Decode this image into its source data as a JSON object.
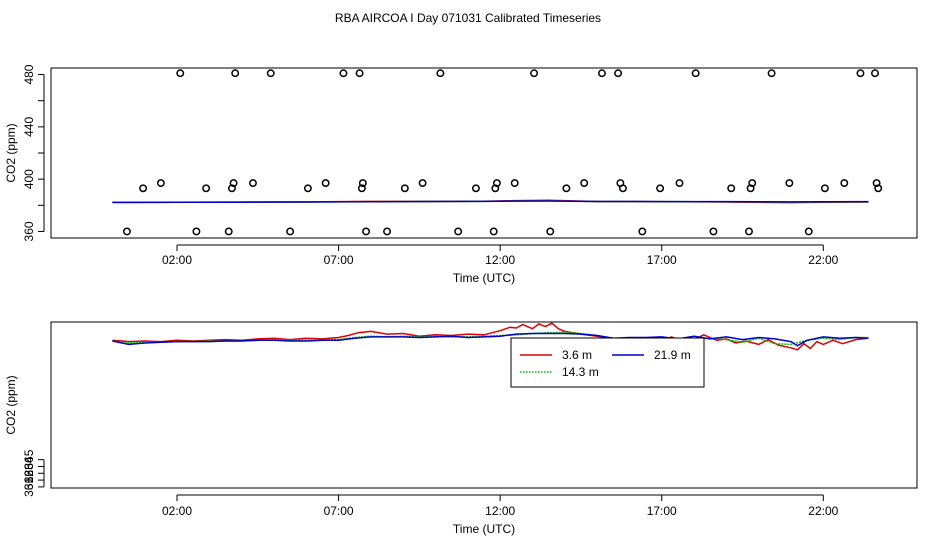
{
  "title": "RBA AIRCOA I  Day 071031  Calibrated Timeseries",
  "colors": {
    "s1": "#e00000",
    "s2": "#00bb00",
    "s3": "#0000cc",
    "markers": "#000000"
  },
  "chart_data": [
    {
      "type": "scatter",
      "xlabel": "Time (UTC)",
      "ylabel": "CO2 (ppm)",
      "xlim": [
        -1.9,
        24.9
      ],
      "ylim": [
        355,
        485
      ],
      "xticks": [
        2,
        7,
        12,
        17,
        22
      ],
      "xtick_labels": [
        "02:00",
        "07:00",
        "12:00",
        "17:00",
        "22:00"
      ],
      "yticks": [
        360,
        380,
        400,
        420,
        440,
        460,
        480
      ],
      "ytick_labels": [
        "360",
        "",
        "400",
        "",
        "440",
        "",
        "480"
      ],
      "marker_points": {
        "x": [
          0.45,
          0.95,
          1.5,
          2.1,
          2.6,
          2.9,
          3.6,
          3.7,
          3.75,
          3.8,
          4.35,
          4.9,
          5.5,
          6.05,
          6.6,
          7.15,
          7.65,
          7.72,
          7.75,
          7.85,
          8.5,
          9.05,
          9.6,
          10.15,
          10.7,
          11.25,
          11.8,
          11.85,
          11.9,
          12.45,
          13.05,
          13.55,
          14.05,
          14.6,
          15.15,
          15.65,
          15.72,
          15.8,
          16.4,
          16.95,
          17.55,
          18.05,
          18.6,
          19.15,
          19.7,
          19.75,
          19.8,
          20.4,
          20.95,
          21.55,
          22.05,
          22.65,
          23.15,
          23.6,
          23.65,
          23.7
        ],
        "y": [
          360,
          393,
          397,
          481,
          360,
          393,
          360,
          393,
          397,
          481,
          397,
          481,
          360,
          393,
          397,
          481,
          481,
          393,
          397,
          360,
          360,
          393,
          397,
          481,
          360,
          393,
          360,
          393,
          397,
          397,
          481,
          360,
          393,
          397,
          481,
          481,
          397,
          393,
          360,
          393,
          397,
          481,
          360,
          393,
          360,
          393,
          397,
          481,
          397,
          360,
          393,
          397,
          481,
          481,
          397,
          393
        ]
      },
      "series": [
        {
          "name": "3.6 m",
          "color": "#e00000",
          "x": [
            0,
            2,
            4,
            6,
            8,
            10,
            11.5,
            12.5,
            13.5,
            15,
            17,
            19,
            21,
            22,
            23.4
          ],
          "y": [
            382.2,
            382.4,
            382.5,
            382.6,
            383.0,
            383.0,
            383.1,
            383.6,
            383.8,
            382.9,
            382.8,
            382.5,
            382.1,
            382.3,
            382.5
          ]
        },
        {
          "name": "14.3 m",
          "color": "#00bb00",
          "x": [
            0,
            2,
            4,
            6,
            8,
            10,
            11.5,
            12.5,
            13.5,
            15,
            17,
            19,
            21,
            22,
            23.4
          ],
          "y": [
            382.2,
            382.3,
            382.4,
            382.5,
            382.8,
            382.9,
            383.0,
            383.3,
            383.4,
            382.9,
            382.8,
            382.7,
            382.4,
            382.5,
            382.6
          ]
        },
        {
          "name": "21.9 m",
          "color": "#0000cc",
          "x": [
            0,
            2,
            4,
            6,
            8,
            10,
            11.5,
            12.5,
            13.5,
            15,
            17,
            19,
            21,
            22,
            23.4
          ],
          "y": [
            382.2,
            382.3,
            382.4,
            382.5,
            382.7,
            382.9,
            383.0,
            383.2,
            383.3,
            382.9,
            382.8,
            382.8,
            382.6,
            382.7,
            382.8
          ]
        }
      ]
    },
    {
      "type": "line",
      "xlabel": "Time (UTC)",
      "ylabel": "CO2 (ppm)",
      "xlim": [
        -1.9,
        24.9
      ],
      "ylim": [
        360.84,
        385.18
      ],
      "xticks": [
        2,
        7,
        12,
        17,
        22
      ],
      "xtick_labels": [
        "02:00",
        "07:00",
        "12:00",
        "17:00",
        "22:00"
      ],
      "yticks": [
        361,
        362,
        363,
        364,
        365
      ],
      "ytick_labels": [
        "361",
        "362",
        "363",
        "364",
        "365"
      ],
      "legend": {
        "entries": [
          "3.6 m",
          "14.3 m",
          "21.9 m"
        ],
        "placement": "top-center"
      },
      "series": [
        {
          "name": "3.6 m",
          "color": "#e00000",
          "x": [
            0,
            0.5,
            1,
            1.5,
            2,
            2.5,
            3,
            3.5,
            4,
            4.5,
            5,
            5.5,
            6,
            6.5,
            7,
            7.3,
            7.6,
            8,
            8.5,
            9,
            9.5,
            10,
            10.5,
            11,
            11.5,
            12,
            12.3,
            12.5,
            12.7,
            13,
            13.2,
            13.4,
            13.6,
            13.8,
            14,
            14.5,
            15,
            15.5,
            16,
            16.3,
            16.7,
            17,
            17.3,
            17.7,
            18,
            18.3,
            18.7,
            19,
            19.3,
            19.6,
            20,
            20.3,
            20.6,
            21,
            21.2,
            21.4,
            21.6,
            21.8,
            22,
            22.3,
            22.6,
            23,
            23.4
          ],
          "y": [
            382.5,
            382.3,
            382.4,
            382.3,
            382.5,
            382.4,
            382.5,
            382.6,
            382.5,
            382.7,
            382.8,
            382.6,
            382.8,
            382.7,
            382.9,
            383.2,
            383.6,
            383.8,
            383.4,
            383.5,
            383.1,
            383.3,
            383.2,
            383.4,
            383.3,
            383.9,
            384.4,
            384.3,
            384.8,
            384.2,
            384.9,
            384.5,
            385.0,
            384.2,
            383.8,
            383.4,
            383.1,
            382.8,
            382.2,
            382.0,
            382.6,
            382.4,
            383.0,
            382.3,
            382.6,
            383.3,
            382.5,
            382.7,
            382.1,
            382.4,
            381.9,
            382.6,
            381.8,
            381.4,
            381.1,
            382.0,
            381.3,
            382.3,
            381.9,
            382.5,
            382.0,
            382.6,
            382.8
          ]
        },
        {
          "name": "14.3 m",
          "color": "#00bb00",
          "x": [
            0,
            0.5,
            1,
            1.5,
            2,
            2.5,
            3,
            3.5,
            4,
            4.5,
            5,
            5.5,
            6,
            6.5,
            7,
            7.5,
            8,
            8.5,
            9,
            9.5,
            10,
            10.5,
            11,
            11.5,
            12,
            12.5,
            13,
            13.5,
            14,
            14.5,
            15,
            15.5,
            16,
            16.5,
            17,
            17.5,
            18,
            18.5,
            19,
            19.5,
            20,
            20.5,
            21,
            21.5,
            22,
            22.5,
            23,
            23.4
          ],
          "y": [
            382.4,
            382.1,
            382.2,
            382.2,
            382.3,
            382.3,
            382.4,
            382.4,
            382.4,
            382.5,
            382.6,
            382.5,
            382.5,
            382.6,
            382.6,
            382.9,
            383.1,
            383.0,
            383.1,
            383.0,
            383.1,
            383.0,
            383.0,
            383.1,
            383.2,
            383.3,
            383.5,
            383.6,
            383.7,
            383.5,
            383.2,
            382.8,
            382.6,
            382.8,
            382.9,
            382.6,
            382.7,
            382.8,
            382.6,
            382.2,
            382.8,
            382.0,
            381.9,
            382.5,
            382.8,
            382.6,
            382.9,
            382.9
          ]
        },
        {
          "name": "21.9 m",
          "color": "#0000cc",
          "x": [
            0,
            0.5,
            1,
            1.5,
            2,
            2.5,
            3,
            3.5,
            4,
            4.5,
            5,
            5.5,
            6,
            6.5,
            7,
            7.5,
            8,
            8.5,
            9,
            9.5,
            10,
            10.5,
            11,
            11.5,
            12,
            12.5,
            13,
            13.5,
            14,
            14.5,
            15,
            15.5,
            16,
            16.5,
            17,
            17.5,
            18,
            18.5,
            19,
            19.5,
            20,
            20.5,
            21,
            21.2,
            21.5,
            22,
            22.5,
            23,
            23.4
          ],
          "y": [
            382.4,
            381.9,
            382.1,
            382.2,
            382.3,
            382.3,
            382.3,
            382.4,
            382.4,
            382.5,
            382.5,
            382.4,
            382.4,
            382.5,
            382.5,
            382.8,
            383.0,
            383.0,
            383.0,
            382.9,
            383.0,
            383.1,
            382.9,
            383.0,
            383.1,
            383.4,
            383.5,
            383.5,
            383.5,
            383.4,
            383.2,
            382.8,
            382.9,
            382.9,
            383.0,
            382.7,
            383.1,
            382.7,
            383.0,
            382.6,
            382.9,
            382.7,
            382.3,
            381.7,
            382.5,
            383.0,
            382.8,
            382.9,
            382.8
          ]
        }
      ]
    }
  ]
}
